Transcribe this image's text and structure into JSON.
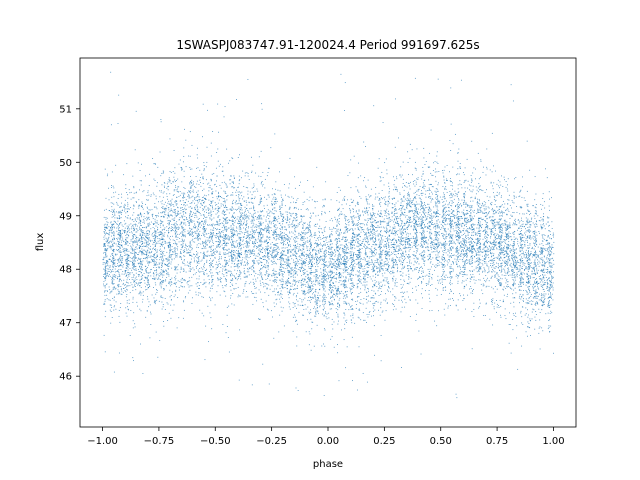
{
  "chart_data": {
    "type": "scatter",
    "title": "1SWASPJ083747.91-120024.4 Period 991697.625s",
    "xlabel": "phase",
    "ylabel": "flux",
    "xlim": [
      -1.1,
      1.1
    ],
    "ylim": [
      45.05,
      51.95
    ],
    "x_ticks": [
      -1.0,
      -0.75,
      -0.5,
      -0.25,
      0.0,
      0.25,
      0.5,
      0.75,
      1.0
    ],
    "x_tick_labels": [
      "−1.00",
      "−0.75",
      "−0.50",
      "−0.25",
      "0.00",
      "0.25",
      "0.50",
      "0.75",
      "1.00"
    ],
    "y_ticks": [
      46,
      47,
      48,
      49,
      50,
      51
    ],
    "y_tick_labels": [
      "46",
      "47",
      "48",
      "49",
      "50",
      "51"
    ],
    "grid": false,
    "legend": false,
    "point_color": "#1f77b4",
    "phase_range": [
      -1.0,
      1.0
    ],
    "approx_point_count": 12000,
    "profile": {
      "phase": [
        -1.0,
        -0.875,
        -0.75,
        -0.625,
        -0.5,
        -0.375,
        -0.25,
        -0.125,
        0.0,
        0.125,
        0.25,
        0.375,
        0.5,
        0.625,
        0.75,
        0.875,
        1.0
      ],
      "median_flux": [
        48.3,
        48.35,
        48.45,
        48.75,
        48.7,
        48.6,
        48.5,
        48.2,
        48.0,
        48.3,
        48.45,
        48.75,
        48.7,
        48.6,
        48.5,
        48.2,
        48.0
      ],
      "spread": [
        0.55,
        0.55,
        0.6,
        0.6,
        0.6,
        0.55,
        0.55,
        0.55,
        0.55,
        0.55,
        0.6,
        0.6,
        0.6,
        0.55,
        0.55,
        0.55,
        0.55
      ],
      "outlier_range": [
        45.4,
        51.7
      ]
    }
  }
}
